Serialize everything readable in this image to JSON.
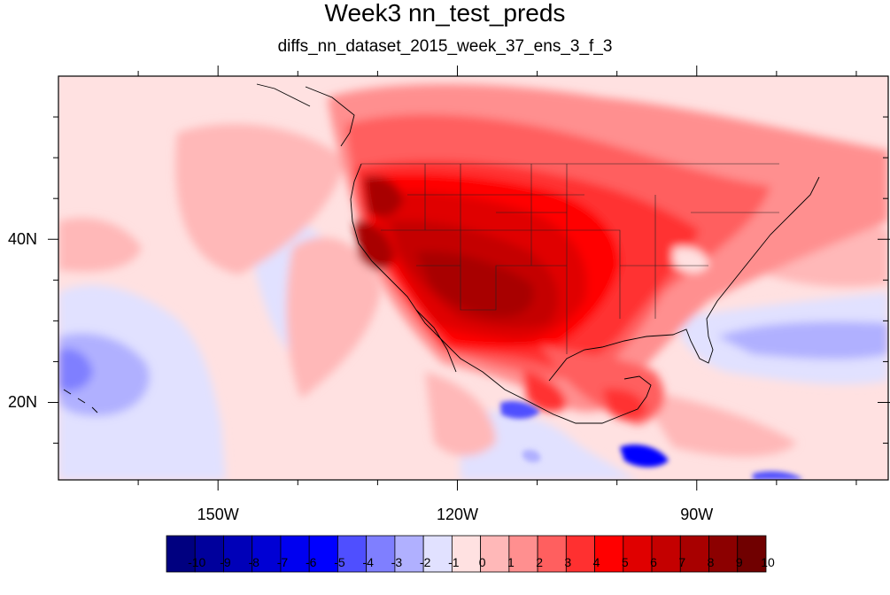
{
  "title": "Week3 nn_test_preds",
  "subtitle": "diffs_nn_dataset_2015_week_37_ens_3_f_3",
  "axes": {
    "lon_range": [
      -170,
      -66
    ],
    "lat_range": [
      10.5,
      60
    ],
    "x_ticks": [
      {
        "lon": -150,
        "label": "150W"
      },
      {
        "lon": -120,
        "label": "120W"
      },
      {
        "lon": -90,
        "label": "90W"
      }
    ],
    "y_ticks": [
      {
        "lat": 40,
        "label": "40N"
      },
      {
        "lat": 20,
        "label": "20N"
      }
    ]
  },
  "colorbar": {
    "labels": [
      "-10",
      "-9",
      "-8",
      "-7",
      "-6",
      "-5",
      "-4",
      "-3",
      "-2",
      "-1",
      "0",
      "1",
      "2",
      "3",
      "4",
      "5",
      "6",
      "7",
      "8",
      "9",
      "10"
    ],
    "colors": [
      "#000080",
      "#00009c",
      "#0000b8",
      "#0000d4",
      "#0000f0",
      "#0000ff",
      "#4f4fff",
      "#7f7fff",
      "#b0b0ff",
      "#e1e1ff",
      "#ffe1e1",
      "#ffb8b8",
      "#ff8f8f",
      "#ff5f5f",
      "#ff3030",
      "#ff0000",
      "#e00000",
      "#c40000",
      "#a80000",
      "#8c0000",
      "#700000"
    ]
  }
}
